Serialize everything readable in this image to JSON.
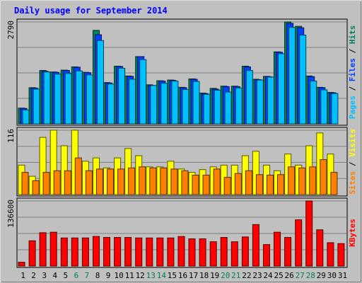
{
  "chart_data": {
    "type": "bar",
    "title": "Daily usage for September 2014",
    "categories": [
      "1",
      "2",
      "3",
      "4",
      "5",
      "6",
      "7",
      "8",
      "9",
      "10",
      "11",
      "12",
      "13",
      "14",
      "15",
      "16",
      "17",
      "18",
      "19",
      "20",
      "21",
      "22",
      "23",
      "24",
      "25",
      "26",
      "27",
      "28",
      "29",
      "30",
      "31"
    ],
    "weekend_days": [
      "6",
      "7",
      "13",
      "14",
      "20",
      "21",
      "27",
      "28"
    ],
    "panels": [
      {
        "id": "hits-files-pages",
        "ymax_label": "2790",
        "ymax": 2790,
        "right_labels": [
          "Pages",
          "Files",
          "Hits"
        ],
        "right_colors": [
          "#00c0ff",
          "#0040ff",
          "#00805c"
        ],
        "series": [
          {
            "name": "Hits",
            "color": "#00805c",
            "values": [
              430,
              990,
              1460,
              1420,
              1470,
              1560,
              1410,
              2560,
              1130,
              1580,
              1310,
              1840,
              1070,
              1180,
              1200,
              1000,
              1230,
              840,
              970,
              1030,
              1030,
              1580,
              1220,
              1300,
              1970,
              2790,
              2670,
              1310,
              1000,
              860,
              0
            ]
          },
          {
            "name": "Files",
            "color": "#0040ff",
            "values": [
              420,
              980,
              1440,
              1410,
              1460,
              1550,
              1400,
              2440,
              1120,
              1570,
              1300,
              1840,
              1050,
              1170,
              1190,
              990,
              1220,
              830,
              950,
              1020,
              1020,
              1560,
              1210,
              1290,
              1960,
              2750,
              2630,
              1290,
              990,
              850,
              0
            ]
          },
          {
            "name": "Pages",
            "color": "#00c0ff",
            "values": [
              380,
              950,
              1420,
              1360,
              1380,
              1450,
              1340,
              2280,
              1090,
              1520,
              1220,
              1760,
              1050,
              1110,
              1170,
              940,
              1160,
              810,
              920,
              870,
              980,
              1460,
              1200,
              1280,
              1920,
              2640,
              2430,
              1170,
              930,
              830,
              0
            ]
          }
        ]
      },
      {
        "id": "visits-sites",
        "ymax_label": "116",
        "ymax": 116,
        "right_labels": [
          "Sites",
          "Visits"
        ],
        "right_colors": [
          "#ff8000",
          "#ffff00"
        ],
        "series": [
          {
            "name": "Visits",
            "color": "#ffff00",
            "values": [
              53,
              33,
              103,
              116,
              88,
              116,
              60,
              66,
              48,
              66,
              83,
              70,
              50,
              50,
              60,
              46,
              40,
              45,
              50,
              53,
              53,
              70,
              78,
              53,
              43,
              73,
              53,
              88,
              111,
              73,
              0
            ]
          },
          {
            "name": "Sites",
            "color": "#ff8000",
            "values": [
              40,
              25,
              40,
              43,
              43,
              66,
              43,
              46,
              46,
              46,
              48,
              50,
              48,
              48,
              46,
              43,
              35,
              35,
              46,
              31,
              38,
              43,
              36,
              35,
              36,
              50,
              48,
              50,
              63,
              40,
              0
            ]
          }
        ]
      },
      {
        "id": "kbytes",
        "ymax_label": "136600",
        "ymax": 136600,
        "right_labels": [
          "KBytes"
        ],
        "right_colors": [
          "#ff0000"
        ],
        "series": [
          {
            "name": "KBytes",
            "color": "#ff0000",
            "values": [
              8000,
              53000,
              70000,
              71000,
              59000,
              59000,
              59000,
              62000,
              60000,
              60000,
              60000,
              59000,
              59000,
              59000,
              59000,
              62000,
              57000,
              57000,
              51000,
              60000,
              51000,
              61000,
              87000,
              45000,
              71000,
              60000,
              97000,
              136600,
              76000,
              49000,
              47000
            ]
          }
        ]
      }
    ]
  }
}
